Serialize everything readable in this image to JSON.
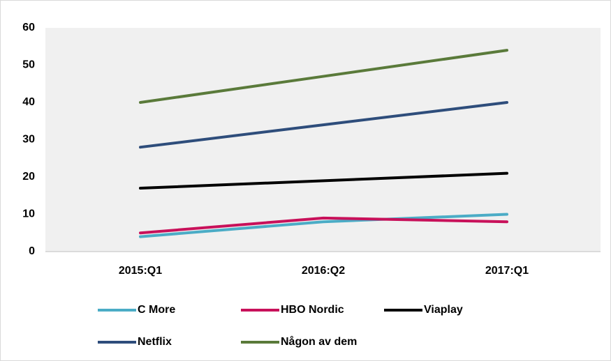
{
  "chart_data": {
    "type": "line",
    "categories": [
      "2015:Q1",
      "2016:Q2",
      "2017:Q1"
    ],
    "series": [
      {
        "name": "C More",
        "color": "#4bacc6",
        "values": [
          4,
          8,
          10
        ]
      },
      {
        "name": "HBO Nordic",
        "color": "#c8115a",
        "values": [
          5,
          9,
          8
        ]
      },
      {
        "name": "Viaplay",
        "color": "#000000",
        "values": [
          17,
          19,
          21
        ]
      },
      {
        "name": "Netflix",
        "color": "#2e4d7b",
        "values": [
          28,
          34,
          40
        ]
      },
      {
        "name": "Någon av dem",
        "color": "#5a7a3a",
        "values": [
          40,
          47,
          54
        ]
      }
    ],
    "ylim": [
      0,
      60
    ],
    "yticks": [
      0,
      10,
      20,
      30,
      40,
      50,
      60
    ]
  }
}
